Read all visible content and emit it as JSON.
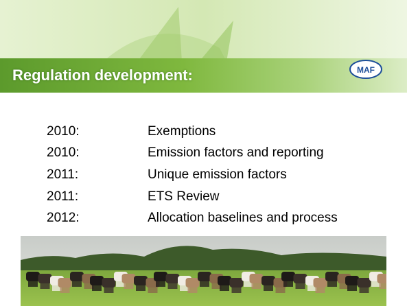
{
  "header": {
    "title": "Regulation development:",
    "logo": "MAF"
  },
  "items": [
    {
      "year": "2010:",
      "text": "Exemptions"
    },
    {
      "year": "2010:",
      "text": "Emission factors and reporting"
    },
    {
      "year": "2011:",
      "text": "Unique emission factors"
    },
    {
      "year": "2011:",
      "text": "ETS Review"
    },
    {
      "year": "2012:",
      "text": "Allocation baselines and process"
    }
  ]
}
